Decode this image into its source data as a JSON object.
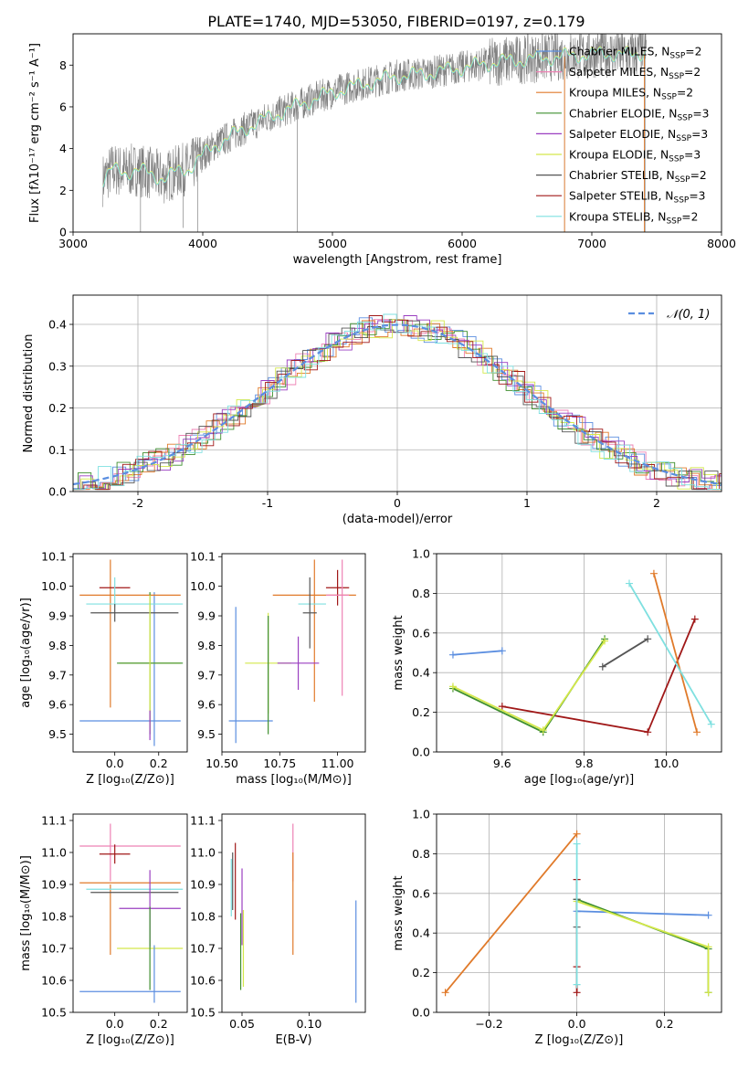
{
  "figure_title": "PLATE=1740, MJD=53050, FIBERID=0197, z=0.179",
  "colors": {
    "Chabrier MILES": "#5b8ee0",
    "Salpeter MILES": "#ee82b4",
    "Kroupa MILES": "#e07a2a",
    "Chabrier ELODIE": "#3f8f2f",
    "Salpeter ELODIE": "#9a3fc0",
    "Kroupa ELODIE": "#d4e84a",
    "Chabrier STELIB": "#555555",
    "Salpeter STELIB": "#a01818",
    "Kroupa STELIB": "#7fe0e0"
  },
  "chart_data": [
    {
      "id": "spectrum",
      "type": "line",
      "title": "PLATE=1740, MJD=53050, FIBERID=0197, z=0.179",
      "xlabel": "wavelength [Angstrom, rest frame]",
      "ylabel": "Flux [fλ10⁻¹⁷ erg cm⁻² s⁻¹ A⁻¹]",
      "xlim": [
        3000,
        8000
      ],
      "ylim": [
        0,
        9.5
      ],
      "xticks": [
        3000,
        4000,
        5000,
        6000,
        7000,
        8000
      ],
      "yticks": [
        0,
        2,
        4,
        6,
        8
      ],
      "legend_position": "top-right",
      "legend": [
        {
          "label": "Chabrier MILES, N",
          "sub": "SSP",
          "suffix": "=2",
          "model": "Chabrier MILES"
        },
        {
          "label": "Salpeter MILES, N",
          "sub": "SSP",
          "suffix": "=2",
          "model": "Salpeter MILES"
        },
        {
          "label": "Kroupa MILES, N",
          "sub": "SSP",
          "suffix": "=2",
          "model": "Kroupa MILES"
        },
        {
          "label": "Chabrier ELODIE, N",
          "sub": "SSP",
          "suffix": "=3",
          "model": "Chabrier ELODIE"
        },
        {
          "label": "Salpeter ELODIE, N",
          "sub": "SSP",
          "suffix": "=3",
          "model": "Salpeter ELODIE"
        },
        {
          "label": "Kroupa ELODIE, N",
          "sub": "SSP",
          "suffix": "=3",
          "model": "Kroupa ELODIE"
        },
        {
          "label": "Chabrier STELIB, N",
          "sub": "SSP",
          "suffix": "=2",
          "model": "Chabrier STELIB"
        },
        {
          "label": "Salpeter STELIB, N",
          "sub": "SSP",
          "suffix": "=3",
          "model": "Salpeter STELIB"
        },
        {
          "label": "Kroupa STELIB, N",
          "sub": "SSP",
          "suffix": "=2",
          "model": "Kroupa STELIB"
        }
      ],
      "data_color": "#808080",
      "model_color": "#7fe0e0",
      "continuum": {
        "x": [
          3230,
          3300,
          3400,
          3500,
          3600,
          3700,
          3800,
          3900,
          4000,
          4100,
          4300,
          4500,
          4700,
          4900,
          5100,
          5300,
          5500,
          5700,
          5900,
          6100,
          6300,
          6500,
          6700,
          6900,
          7100,
          7300,
          7420
        ],
        "y": [
          2.5,
          3.0,
          2.9,
          3.0,
          2.8,
          2.6,
          2.9,
          3.1,
          3.7,
          4.2,
          4.9,
          5.5,
          6.0,
          6.5,
          6.9,
          7.2,
          7.5,
          7.6,
          7.8,
          8.0,
          8.2,
          8.3,
          8.4,
          8.5,
          8.6,
          8.5,
          8.7
        ]
      }
    },
    {
      "id": "residuals",
      "type": "histogram",
      "xlabel": "(data-model)/error",
      "ylabel": "Normed distribution",
      "xlim": [
        -2.5,
        2.5
      ],
      "ylim": [
        0,
        0.47
      ],
      "xticks": [
        -2,
        -1,
        0,
        1,
        2
      ],
      "yticks": [
        0.0,
        0.1,
        0.2,
        0.3,
        0.4
      ],
      "grid": true,
      "legend_position": "top-right",
      "gaussian_label": "𝒩(0, 1)",
      "gaussian_color": "#5b8ee0",
      "bin_width": 0.1
    },
    {
      "id": "age-vs-Z",
      "type": "errorbar",
      "xlabel": "Z [log₁₀(Z/Z⊙)]",
      "ylabel": "age  [log₁₀(age/yr)]",
      "xlim": [
        -0.19,
        0.33
      ],
      "ylim": [
        9.44,
        10.11
      ],
      "xticks": [
        0.0,
        0.2
      ],
      "yticks": [
        9.5,
        9.6,
        9.7,
        9.8,
        9.9,
        10.0,
        10.1
      ],
      "points": [
        {
          "model": "Chabrier MILES",
          "x": 0.18,
          "y": 9.72,
          "xerr": 0.0,
          "yerr": 0.26
        },
        {
          "model": "Chabrier MILES",
          "x": 0.07,
          "y": 9.545,
          "xerr": 0.23,
          "yerr": 0.0
        },
        {
          "model": "Kroupa MILES",
          "x": 0.07,
          "y": 9.97,
          "xerr": 0.23,
          "yerr": 0.0
        },
        {
          "model": "Kroupa MILES",
          "x": -0.02,
          "y": 9.84,
          "xerr": 0.0,
          "yerr": 0.25
        },
        {
          "model": "Salpeter STELIB",
          "x": 0.0,
          "y": 9.995,
          "xerr": 0.07,
          "yerr": 0.0
        },
        {
          "model": "Kroupa STELIB",
          "x": 0.09,
          "y": 9.94,
          "xerr": 0.22,
          "yerr": 0.0
        },
        {
          "model": "Kroupa STELIB",
          "x": 0.0,
          "y": 9.98,
          "xerr": 0.0,
          "yerr": 0.05
        },
        {
          "model": "Chabrier STELIB",
          "x": 0.09,
          "y": 9.91,
          "xerr": 0.2,
          "yerr": 0.0
        },
        {
          "model": "Chabrier STELIB",
          "x": 0.0,
          "y": 9.91,
          "xerr": 0.0,
          "yerr": 0.03
        },
        {
          "model": "Kroupa ELODIE",
          "x": 0.16,
          "y": 9.74,
          "xerr": 0.14,
          "yerr": 0.0
        },
        {
          "model": "Chabrier ELODIE",
          "x": 0.16,
          "y": 9.74,
          "xerr": 0.15,
          "yerr": 0.0
        },
        {
          "model": "Chabrier ELODIE",
          "x": 0.16,
          "y": 9.74,
          "xerr": 0.0,
          "yerr": 0.24
        },
        {
          "model": "Kroupa ELODIE",
          "x": 0.16,
          "y": 9.74,
          "xerr": 0.0,
          "yerr": 0.23
        },
        {
          "model": "Salpeter ELODIE",
          "x": 0.16,
          "y": 9.53,
          "xerr": 0.0,
          "yerr": 0.05
        }
      ]
    },
    {
      "id": "age-vs-mass",
      "type": "errorbar",
      "xlabel": "mass [log₁₀(M/M⊙)]",
      "ylabel": "",
      "xlim": [
        10.5,
        11.12
      ],
      "ylim": [
        9.44,
        10.11
      ],
      "xticks": [
        10.5,
        10.75,
        11.0
      ],
      "xticklabels": [
        "10.50",
        "10.75",
        "11.00"
      ],
      "yticks": [
        9.5,
        9.6,
        9.7,
        9.8,
        9.9,
        10.0,
        10.1
      ],
      "points": [
        {
          "model": "Chabrier MILES",
          "x": 10.625,
          "y": 9.545,
          "xerr": 0.095,
          "yerr": 0.0
        },
        {
          "model": "Chabrier MILES",
          "x": 10.56,
          "y": 9.7,
          "xerr": 0.0,
          "yerr": 0.23
        },
        {
          "model": "Kroupa MILES",
          "x": 10.9,
          "y": 9.97,
          "xerr": 0.18,
          "yerr": 0.0
        },
        {
          "model": "Kroupa MILES",
          "x": 10.9,
          "y": 9.85,
          "xerr": 0.0,
          "yerr": 0.24
        },
        {
          "model": "Kroupa ELODIE",
          "x": 10.7,
          "y": 9.74,
          "xerr": 0.1,
          "yerr": 0.0
        },
        {
          "model": "Kroupa ELODIE",
          "x": 10.7,
          "y": 9.74,
          "xerr": 0.0,
          "yerr": 0.17
        },
        {
          "model": "Chabrier ELODIE",
          "x": 10.7,
          "y": 9.7,
          "xerr": 0.0,
          "yerr": 0.2
        },
        {
          "model": "Salpeter ELODIE",
          "x": 10.83,
          "y": 9.74,
          "xerr": 0.09,
          "yerr": 0.0
        },
        {
          "model": "Salpeter ELODIE",
          "x": 10.83,
          "y": 9.74,
          "xerr": 0.0,
          "yerr": 0.09
        },
        {
          "model": "Kroupa STELIB",
          "x": 10.89,
          "y": 9.94,
          "xerr": 0.06,
          "yerr": 0.0
        },
        {
          "model": "Chabrier STELIB",
          "x": 10.88,
          "y": 9.91,
          "xerr": 0.03,
          "yerr": 0.12
        },
        {
          "model": "Salpeter STELIB",
          "x": 11.0,
          "y": 9.995,
          "xerr": 0.05,
          "yerr": 0.06
        },
        {
          "model": "Salpeter MILES",
          "x": 11.02,
          "y": 9.86,
          "xerr": 0.0,
          "yerr": 0.23
        },
        {
          "model": "Salpeter MILES",
          "x": 11.0,
          "y": 9.97,
          "xerr": 0.05,
          "yerr": 0.0
        }
      ]
    },
    {
      "id": "weight-vs-age",
      "type": "line",
      "xlabel": "age  [log₁₀(age/yr)]",
      "ylabel": "mass weight",
      "xlim": [
        9.44,
        10.135
      ],
      "ylim": [
        0,
        1
      ],
      "xticks": [
        9.6,
        9.8,
        10.0
      ],
      "yticks": [
        0.0,
        0.2,
        0.4,
        0.6,
        0.8,
        1.0
      ],
      "grid": true,
      "series": [
        {
          "model": "Chabrier MILES",
          "x": [
            9.48,
            9.6
          ],
          "y": [
            0.49,
            0.51
          ]
        },
        {
          "model": "Salpeter STELIB",
          "x": [
            9.6,
            9.955,
            10.07
          ],
          "y": [
            0.23,
            0.1,
            0.67
          ]
        },
        {
          "model": "Chabrier ELODIE",
          "x": [
            9.48,
            9.7,
            9.85
          ],
          "y": [
            0.32,
            0.1,
            0.57
          ]
        },
        {
          "model": "Kroupa ELODIE",
          "x": [
            9.48,
            9.7,
            9.85
          ],
          "y": [
            0.33,
            0.11,
            0.56
          ]
        },
        {
          "model": "Chabrier STELIB",
          "x": [
            9.845,
            9.955
          ],
          "y": [
            0.43,
            0.57
          ]
        },
        {
          "model": "Kroupa MILES",
          "x": [
            9.97,
            10.075
          ],
          "y": [
            0.9,
            0.1
          ]
        },
        {
          "model": "Kroupa STELIB",
          "x": [
            9.91,
            10.11
          ],
          "y": [
            0.85,
            0.14
          ]
        }
      ]
    },
    {
      "id": "mass-vs-Z",
      "type": "errorbar",
      "xlabel": "Z [log₁₀(Z/Z⊙)]",
      "ylabel": "mass [log₁₀(M/M⊙)]",
      "xlim": [
        -0.19,
        0.33
      ],
      "ylim": [
        10.5,
        11.12
      ],
      "xticks": [
        0.0,
        0.2
      ],
      "yticks": [
        10.5,
        10.6,
        10.7,
        10.8,
        10.9,
        11.0,
        11.1
      ],
      "points": [
        {
          "model": "Salpeter MILES",
          "x": 0.07,
          "y": 11.02,
          "xerr": 0.23,
          "yerr": 0.0
        },
        {
          "model": "Salpeter MILES",
          "x": -0.02,
          "y": 11.0,
          "xerr": 0.0,
          "yerr": 0.09
        },
        {
          "model": "Salpeter STELIB",
          "x": 0.0,
          "y": 10.995,
          "xerr": 0.07,
          "yerr": 0.03
        },
        {
          "model": "Kroupa MILES",
          "x": 0.07,
          "y": 10.905,
          "xerr": 0.23,
          "yerr": 0.0
        },
        {
          "model": "Kroupa MILES",
          "x": -0.02,
          "y": 10.79,
          "xerr": 0.0,
          "yerr": 0.11
        },
        {
          "model": "Kroupa STELIB",
          "x": 0.09,
          "y": 10.885,
          "xerr": 0.22,
          "yerr": 0.0
        },
        {
          "model": "Chabrier STELIB",
          "x": 0.09,
          "y": 10.875,
          "xerr": 0.2,
          "yerr": 0.0
        },
        {
          "model": "Salpeter ELODIE",
          "x": 0.16,
          "y": 10.825,
          "xerr": 0.14,
          "yerr": 0.0
        },
        {
          "model": "Salpeter ELODIE",
          "x": 0.16,
          "y": 10.825,
          "xerr": 0.0,
          "yerr": 0.12
        },
        {
          "model": "Kroupa ELODIE",
          "x": 0.16,
          "y": 10.7,
          "xerr": 0.15,
          "yerr": 0.0
        },
        {
          "model": "Chabrier ELODIE",
          "x": 0.16,
          "y": 10.7,
          "xerr": 0.0,
          "yerr": 0.13
        },
        {
          "model": "Chabrier MILES",
          "x": 0.07,
          "y": 10.565,
          "xerr": 0.23,
          "yerr": 0.0
        },
        {
          "model": "Chabrier MILES",
          "x": 0.18,
          "y": 10.62,
          "xerr": 0.0,
          "yerr": 0.09
        }
      ]
    },
    {
      "id": "mass-vs-ebv",
      "type": "errorbar",
      "xlabel": "E(B-V)",
      "ylabel": "",
      "xlim": [
        0.035,
        0.142
      ],
      "ylim": [
        10.5,
        11.12
      ],
      "xticks": [
        0.05,
        0.1
      ],
      "yticks": [
        10.5,
        10.6,
        10.7,
        10.8,
        10.9,
        11.0,
        11.1
      ],
      "points": [
        {
          "model": "Salpeter STELIB",
          "x": 0.045,
          "y": 10.91,
          "xerr": 0.0,
          "yerr": 0.12
        },
        {
          "model": "Chabrier STELIB",
          "x": 0.043,
          "y": 10.91,
          "xerr": 0.0,
          "yerr": 0.09
        },
        {
          "model": "Kroupa STELIB",
          "x": 0.042,
          "y": 10.89,
          "xerr": 0.0,
          "yerr": 0.09
        },
        {
          "model": "Salpeter ELODIE",
          "x": 0.05,
          "y": 10.83,
          "xerr": 0.0,
          "yerr": 0.12
        },
        {
          "model": "Kroupa ELODIE",
          "x": 0.051,
          "y": 10.7,
          "xerr": 0.0,
          "yerr": 0.12
        },
        {
          "model": "Chabrier ELODIE",
          "x": 0.049,
          "y": 10.69,
          "xerr": 0.0,
          "yerr": 0.12
        },
        {
          "model": "Salpeter MILES",
          "x": 0.088,
          "y": 11.0,
          "xerr": 0.0,
          "yerr": 0.09
        },
        {
          "model": "Kroupa MILES",
          "x": 0.088,
          "y": 10.84,
          "xerr": 0.0,
          "yerr": 0.16
        },
        {
          "model": "Chabrier MILES",
          "x": 0.135,
          "y": 10.69,
          "xerr": 0.0,
          "yerr": 0.16
        }
      ]
    },
    {
      "id": "weight-vs-Z",
      "type": "line",
      "xlabel": "Z [log₁₀(Z/Z⊙)]",
      "ylabel": "mass weight",
      "xlim": [
        -0.32,
        0.33
      ],
      "ylim": [
        0,
        1
      ],
      "xticks": [
        -0.2,
        0.0,
        0.2
      ],
      "yticks": [
        0.0,
        0.2,
        0.4,
        0.6,
        0.8,
        1.0
      ],
      "grid": true,
      "series": [
        {
          "model": "Chabrier MILES",
          "x": [
            0.0,
            0.3
          ],
          "y": [
            0.51,
            0.49
          ]
        },
        {
          "model": "Chabrier ELODIE",
          "x": [
            0.0,
            0.3,
            0.3
          ],
          "y": [
            0.57,
            0.32,
            0.1
          ]
        },
        {
          "model": "Kroupa ELODIE",
          "x": [
            0.0,
            0.3,
            0.3
          ],
          "y": [
            0.56,
            0.33,
            0.1
          ]
        },
        {
          "model": "Salpeter STELIB",
          "x": [
            0.0,
            0.0,
            0.0
          ],
          "y": [
            0.67,
            0.23,
            0.1
          ]
        },
        {
          "model": "Chabrier STELIB",
          "x": [
            0.0,
            0.0
          ],
          "y": [
            0.57,
            0.43
          ]
        },
        {
          "model": "Kroupa STELIB",
          "x": [
            0.0,
            0.0
          ],
          "y": [
            0.85,
            0.14
          ]
        },
        {
          "model": "Kroupa MILES",
          "x": [
            -0.3,
            0.0
          ],
          "y": [
            0.1,
            0.9
          ]
        }
      ]
    }
  ]
}
